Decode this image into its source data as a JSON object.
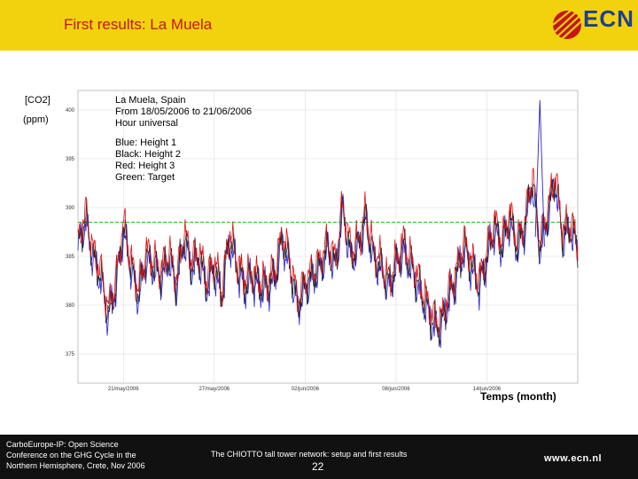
{
  "header": {
    "title": "First results: La Muela",
    "bg_color": "#f2d20d",
    "title_color": "#c4161c"
  },
  "logo": {
    "text": "ECN",
    "icon": "ecn-logo-icon"
  },
  "chart_data": {
    "type": "line",
    "ylabel_line1": "[CO2]",
    "ylabel_line2": "(ppm)",
    "xlabel": "Temps (month)",
    "ylim": [
      372,
      402
    ],
    "y_ticks": [
      375,
      380,
      385,
      390,
      395,
      400
    ],
    "x_tick_labels": [
      "21/may/2006",
      "27/may/2006",
      "02/jun/2006",
      "08/jun/2006",
      "14/jun/2006"
    ],
    "x_tick_days": [
      3,
      9,
      15,
      21,
      27
    ],
    "x_range_days": [
      0,
      33
    ],
    "grid": true,
    "annotations": [
      "La Muela, Spain",
      "From 18/05/2006 to 21/06/2006",
      "Hour universal",
      "Blue: Height 1",
      "Black: Height 2",
      "Red: Height 3",
      "Green: Target"
    ],
    "series": [
      {
        "color": "#2222cc",
        "offset": -0.4
      },
      {
        "color": "#222222",
        "offset": 0.0
      },
      {
        "color": "#dd1111",
        "offset": 0.6
      }
    ],
    "target": {
      "color": "#22bb22",
      "value": 388.5
    },
    "base_keypoints": [
      [
        0,
        386
      ],
      [
        0.5,
        389
      ],
      [
        1,
        385
      ],
      [
        1.5,
        383
      ],
      [
        2,
        379
      ],
      [
        2.5,
        382
      ],
      [
        3,
        388
      ],
      [
        3.5,
        384
      ],
      [
        4,
        381
      ],
      [
        4.5,
        385
      ],
      [
        5,
        384
      ],
      [
        5.5,
        383
      ],
      [
        6,
        385
      ],
      [
        6.5,
        382
      ],
      [
        7,
        387
      ],
      [
        7.5,
        384
      ],
      [
        8,
        385
      ],
      [
        8.5,
        382
      ],
      [
        9,
        384
      ],
      [
        9.5,
        381
      ],
      [
        10,
        387
      ],
      [
        10.5,
        384
      ],
      [
        11,
        382
      ],
      [
        11.5,
        383
      ],
      [
        12,
        382
      ],
      [
        12.5,
        382
      ],
      [
        13,
        383
      ],
      [
        13.5,
        387
      ],
      [
        14,
        384
      ],
      [
        14.5,
        380
      ],
      [
        15,
        382
      ],
      [
        15.5,
        383
      ],
      [
        16,
        384
      ],
      [
        16.5,
        386
      ],
      [
        17,
        384
      ],
      [
        17.5,
        390
      ],
      [
        18,
        385
      ],
      [
        18.5,
        386
      ],
      [
        19,
        389
      ],
      [
        19.5,
        385
      ],
      [
        20,
        384
      ],
      [
        20.5,
        382
      ],
      [
        21,
        384
      ],
      [
        21.5,
        386
      ],
      [
        22,
        384
      ],
      [
        22.5,
        382
      ],
      [
        23,
        380
      ],
      [
        23.5,
        378
      ],
      [
        24,
        378
      ],
      [
        24.5,
        381
      ],
      [
        25,
        383
      ],
      [
        25.5,
        386
      ],
      [
        26,
        384
      ],
      [
        26.5,
        382
      ],
      [
        27,
        385
      ],
      [
        27.5,
        388
      ],
      [
        28,
        386
      ],
      [
        28.5,
        389
      ],
      [
        29,
        386
      ],
      [
        29.5,
        388
      ],
      [
        30,
        393
      ],
      [
        30.5,
        386
      ],
      [
        31,
        389
      ],
      [
        31.5,
        393
      ],
      [
        32,
        387
      ],
      [
        32.5,
        388
      ],
      [
        33,
        386
      ]
    ]
  },
  "footer": {
    "left_line1": "CarboEurope-IP: Open Science",
    "left_line2": "Conference on the GHG Cycle in the",
    "left_line3": "Northern Hemisphere, Crete, Nov 2006",
    "center": "The CHIOTTO tall tower network: setup and first results",
    "page": "22",
    "url": "www.ecn.nl"
  }
}
